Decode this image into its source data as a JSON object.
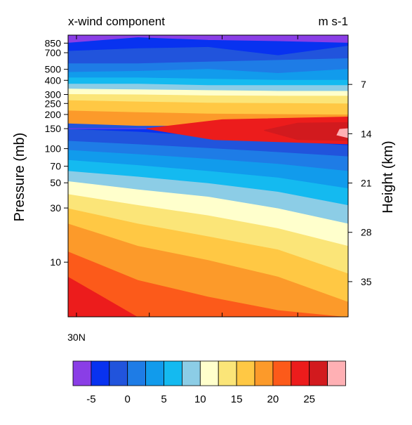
{
  "chart_data": {
    "type": "heatmap",
    "title_left": "x-wind component",
    "title_right": "m s-1",
    "ylabel": "Pressure (mb)",
    "ylabel_right": "Height (km)",
    "x_ticks": [
      {
        "label": "30N",
        "value": "30N"
      }
    ],
    "y_ticks_left": [
      {
        "label": "10",
        "value": 10
      },
      {
        "label": "30",
        "value": 30
      },
      {
        "label": "50",
        "value": 50
      },
      {
        "label": "70",
        "value": 70
      },
      {
        "label": "100",
        "value": 100
      },
      {
        "label": "150",
        "value": 150
      },
      {
        "label": "200",
        "value": 200
      },
      {
        "label": "250",
        "value": 250
      },
      {
        "label": "300",
        "value": 300
      },
      {
        "label": "400",
        "value": 400
      },
      {
        "label": "500",
        "value": 500
      },
      {
        "label": "700",
        "value": 700
      },
      {
        "label": "850",
        "value": 850
      }
    ],
    "y_ticks_right": [
      {
        "label": "35",
        "value": 35
      },
      {
        "label": "28",
        "value": 28
      },
      {
        "label": "21",
        "value": 21
      },
      {
        "label": "14",
        "value": 14
      },
      {
        "label": "7",
        "value": 7
      }
    ],
    "pressure_range_mb": [
      1000,
      3.3
    ],
    "y_scale": "log",
    "colorbar": {
      "levels": [
        -7.5,
        -5,
        -2.5,
        0,
        2.5,
        5,
        7.5,
        10,
        12.5,
        15,
        17.5,
        20,
        22.5,
        25,
        27.5,
        30
      ],
      "colors": [
        "#8a3ee6",
        "#0832f0",
        "#2154dc",
        "#1e7ce6",
        "#119bec",
        "#14baf0",
        "#8ccde6",
        "#ffffcc",
        "#fbe578",
        "#ffc844",
        "#fc9a2a",
        "#fc5a1a",
        "#ec1c1c",
        "#d21a1e",
        "#ffb0b4"
      ],
      "tick_labels": [
        {
          "label": "-5",
          "value": -5
        },
        {
          "label": "0",
          "value": 0
        },
        {
          "label": "5",
          "value": 5
        },
        {
          "label": "10",
          "value": 10
        },
        {
          "label": "15",
          "value": 15
        },
        {
          "label": "20",
          "value": 20
        },
        {
          "label": "25",
          "value": 25
        }
      ]
    },
    "contour_band_boundaries_mb": {
      "x_fraction": [
        0,
        0.25,
        0.5,
        0.75,
        1
      ],
      "tops": [
        [
          850,
          950,
          900,
          880,
          850
        ],
        [
          720,
          760,
          780,
          660,
          800
        ],
        [
          560,
          560,
          580,
          600,
          620
        ],
        [
          470,
          480,
          500,
          460,
          500
        ],
        [
          420,
          420,
          410,
          400,
          400
        ],
        [
          370,
          370,
          360,
          360,
          360
        ],
        [
          335,
          330,
          325,
          320,
          320
        ],
        [
          300,
          298,
          292,
          290,
          290
        ],
        [
          265,
          258,
          252,
          250,
          248
        ],
        [
          215,
          208,
          202,
          200,
          198
        ],
        [
          168,
          160,
          160,
          162,
          165
        ],
        [
          150,
          150,
          148,
          155,
          158
        ],
        [
          150,
          150,
          145,
          138,
          140
        ],
        [
          150,
          150,
          150,
          162,
          130
        ],
        [
          150,
          150,
          150,
          150,
          122
        ]
      ],
      "bottoms": [
        [
          1000,
          1000,
          1000,
          1000,
          1000
        ],
        [
          850,
          950,
          900,
          880,
          850
        ],
        [
          720,
          760,
          780,
          660,
          800
        ],
        [
          560,
          560,
          580,
          600,
          620
        ],
        [
          470,
          480,
          500,
          460,
          500
        ],
        [
          420,
          420,
          410,
          400,
          400
        ],
        [
          370,
          370,
          360,
          360,
          360
        ],
        [
          335,
          330,
          325,
          320,
          320
        ],
        [
          300,
          298,
          292,
          290,
          290
        ],
        [
          265,
          258,
          252,
          250,
          248
        ],
        [
          215,
          208,
          202,
          200,
          198
        ],
        [
          150,
          150,
          150,
          150,
          150
        ],
        [
          150,
          150,
          152,
          165,
          162
        ],
        [
          150,
          150,
          150,
          150,
          152
        ],
        [
          150,
          150,
          150,
          150,
          150
        ]
      ],
      "upper_tops": [
        [
          3.3,
          3.3,
          3.3,
          3.3,
          3.3
        ],
        [
          3.3,
          3.3,
          3.3,
          3.3,
          3.3
        ],
        [
          7.5,
          3.3,
          3.3,
          3.3,
          3.3
        ],
        [
          12.5,
          7.0,
          5.0,
          3.8,
          3.3
        ],
        [
          22,
          14,
          10.5,
          7.5,
          4.5
        ],
        [
          30,
          22,
          17,
          13,
          8
        ],
        [
          40,
          32,
          26,
          20,
          14
        ],
        [
          52,
          44,
          38,
          30,
          22
        ],
        [
          64,
          57,
          50,
          42,
          32
        ],
        [
          80,
          72,
          64,
          56,
          45
        ],
        [
          98,
          90,
          82,
          74,
          64
        ],
        [
          118,
          110,
          102,
          94,
          86
        ],
        [
          150,
          142,
          130,
          118,
          108
        ],
        [
          150,
          150,
          150,
          150,
          118
        ]
      ]
    }
  }
}
